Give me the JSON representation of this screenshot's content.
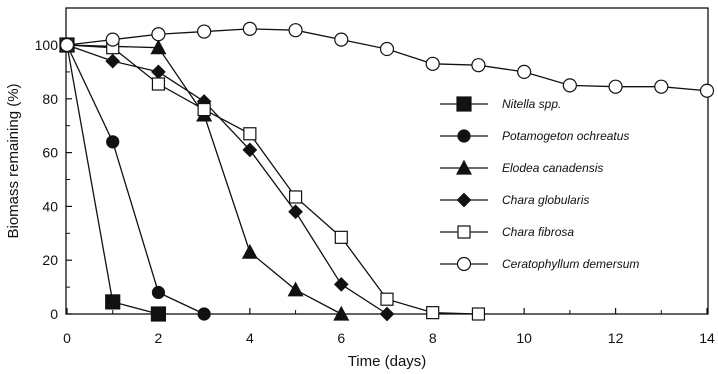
{
  "chart_data": {
    "type": "line",
    "xlabel": "Time (days)",
    "ylabel": "Biomass remaining (%)",
    "xlim": [
      0,
      14
    ],
    "ylim": [
      0,
      110
    ],
    "xticks": [
      0,
      2,
      4,
      6,
      8,
      10,
      12,
      14
    ],
    "yticks": [
      0,
      20,
      40,
      60,
      80,
      100
    ],
    "grid": false,
    "legend_position": "center-right",
    "series": [
      {
        "name": "Nitella spp.",
        "marker": "square-filled",
        "points": [
          [
            0,
            100
          ],
          [
            1,
            4.5
          ],
          [
            2,
            0
          ]
        ]
      },
      {
        "name": "Potamogeton ochreatus",
        "marker": "circle-filled",
        "points": [
          [
            0,
            100
          ],
          [
            1,
            64
          ],
          [
            2,
            8
          ],
          [
            3,
            0
          ]
        ]
      },
      {
        "name": "Elodea canadensis",
        "marker": "triangle-filled",
        "points": [
          [
            0,
            100
          ],
          [
            2,
            99
          ],
          [
            3,
            74
          ],
          [
            4,
            23
          ],
          [
            5,
            9
          ],
          [
            6,
            0
          ]
        ]
      },
      {
        "name": "Chara globularis",
        "marker": "diamond-filled",
        "points": [
          [
            0,
            100
          ],
          [
            1,
            94
          ],
          [
            2,
            90
          ],
          [
            3,
            79
          ],
          [
            4,
            61
          ],
          [
            5,
            38
          ],
          [
            6,
            11
          ],
          [
            7,
            0
          ]
        ]
      },
      {
        "name": "Chara fibrosa",
        "marker": "square-open",
        "points": [
          [
            0,
            100
          ],
          [
            1,
            99
          ],
          [
            2,
            85.5
          ],
          [
            3,
            76
          ],
          [
            4,
            67
          ],
          [
            5,
            43.5
          ],
          [
            6,
            28.5
          ],
          [
            7,
            5.5
          ],
          [
            8,
            0.5
          ],
          [
            9,
            0
          ]
        ]
      },
      {
        "name": "Ceratophyllum demersum",
        "marker": "circle-open",
        "points": [
          [
            0,
            100
          ],
          [
            1,
            102
          ],
          [
            2,
            104
          ],
          [
            3,
            105
          ],
          [
            4,
            106
          ],
          [
            5,
            105.5
          ],
          [
            6,
            102
          ],
          [
            7,
            98.5
          ],
          [
            8,
            93
          ],
          [
            9,
            92.5
          ],
          [
            10,
            90
          ],
          [
            11,
            85
          ],
          [
            12,
            84.5
          ],
          [
            13,
            84.5
          ],
          [
            14,
            83
          ]
        ]
      }
    ]
  }
}
